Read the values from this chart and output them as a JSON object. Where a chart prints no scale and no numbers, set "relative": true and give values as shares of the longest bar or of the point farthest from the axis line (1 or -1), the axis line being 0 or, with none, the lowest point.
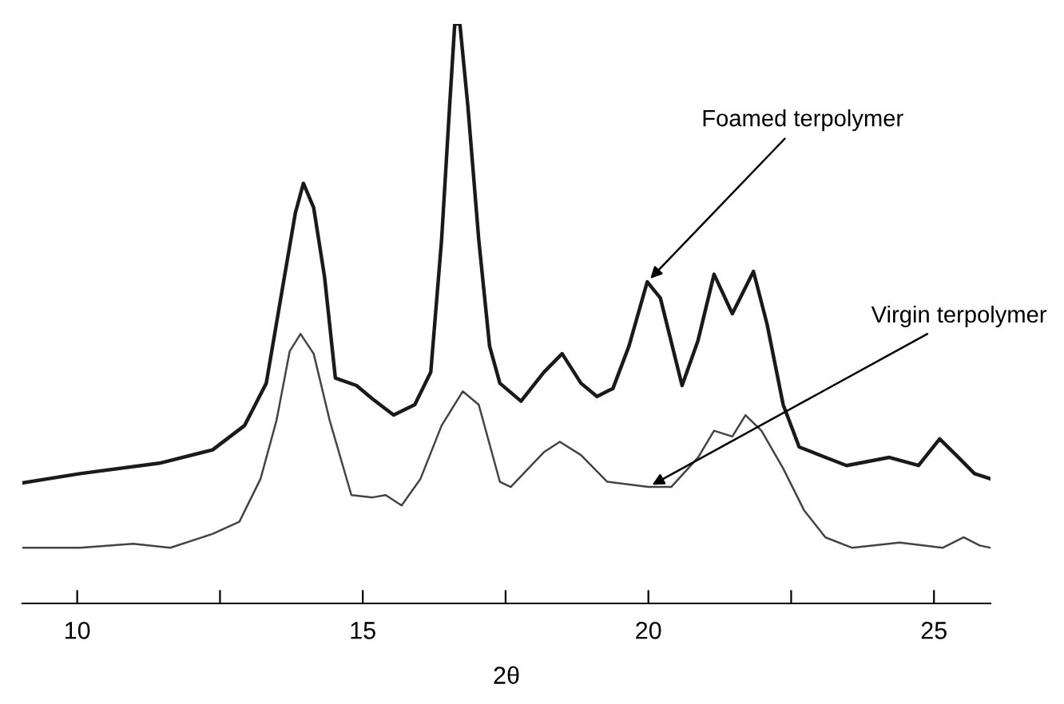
{
  "chart_data": {
    "type": "line",
    "relative": true,
    "xlabel": "2θ",
    "xlim": [
      9.04,
      25.99
    ],
    "xticks": [
      10,
      {
        "value": 12.5,
        "label": null
      },
      15,
      {
        "value": 17.5,
        "label": null
      },
      20,
      {
        "value": 22.5,
        "label": null
      },
      25
    ],
    "tick_labels": "x",
    "grid": false,
    "legend": false,
    "marker": "none",
    "line_style": "solid",
    "series": [
      {
        "color": "#1a1a1a",
        "x": [
          9.04,
          10.05,
          11.44,
          12.37,
          12.93,
          13.31,
          13.58,
          13.82,
          13.96,
          14.14,
          14.33,
          14.52,
          14.89,
          15.17,
          15.54,
          15.91,
          16.19,
          16.38,
          16.52,
          16.61,
          16.7,
          16.84,
          17.03,
          17.22,
          17.4,
          17.77,
          18.17,
          18.49,
          18.82,
          19.1,
          19.38,
          19.66,
          19.98,
          20.21,
          20.59,
          20.87,
          21.15,
          21.47,
          21.84,
          22.08,
          22.36,
          22.64,
          23.1,
          23.47,
          24.22,
          24.73,
          25.1,
          25.43,
          25.71,
          25.99
        ],
        "values": [
          0.208,
          0.224,
          0.242,
          0.265,
          0.307,
          0.38,
          0.536,
          0.674,
          0.725,
          0.683,
          0.564,
          0.389,
          0.376,
          0.353,
          0.325,
          0.343,
          0.399,
          0.628,
          0.858,
          1.0,
          1.0,
          0.858,
          0.628,
          0.444,
          0.38,
          0.349,
          0.399,
          0.431,
          0.38,
          0.357,
          0.371,
          0.444,
          0.555,
          0.527,
          0.376,
          0.454,
          0.568,
          0.5,
          0.573,
          0.481,
          0.343,
          0.27,
          0.252,
          0.238,
          0.252,
          0.238,
          0.284,
          0.252,
          0.224,
          0.215
        ]
      },
      {
        "color": "#444444",
        "x": [
          9.04,
          10.05,
          10.98,
          11.63,
          12.37,
          12.84,
          13.21,
          13.49,
          13.72,
          13.91,
          14.14,
          14.42,
          14.8,
          15.17,
          15.4,
          15.68,
          16.01,
          16.38,
          16.75,
          17.03,
          17.4,
          17.59,
          18.17,
          18.45,
          18.82,
          19.28,
          20.0,
          20.4,
          20.87,
          21.15,
          21.47,
          21.7,
          21.98,
          22.36,
          22.73,
          23.1,
          23.57,
          24.4,
          25.15,
          25.52,
          25.8,
          25.99
        ],
        "values": [
          0.096,
          0.096,
          0.103,
          0.096,
          0.12,
          0.141,
          0.215,
          0.316,
          0.435,
          0.465,
          0.431,
          0.316,
          0.187,
          0.183,
          0.187,
          0.169,
          0.215,
          0.307,
          0.366,
          0.343,
          0.21,
          0.201,
          0.261,
          0.279,
          0.256,
          0.21,
          0.201,
          0.201,
          0.252,
          0.298,
          0.288,
          0.325,
          0.298,
          0.233,
          0.16,
          0.114,
          0.096,
          0.105,
          0.096,
          0.114,
          0.1,
          0.096
        ]
      }
    ],
    "annotations": [
      "Foamed terpolymer",
      "Virgin terpolymer"
    ]
  }
}
